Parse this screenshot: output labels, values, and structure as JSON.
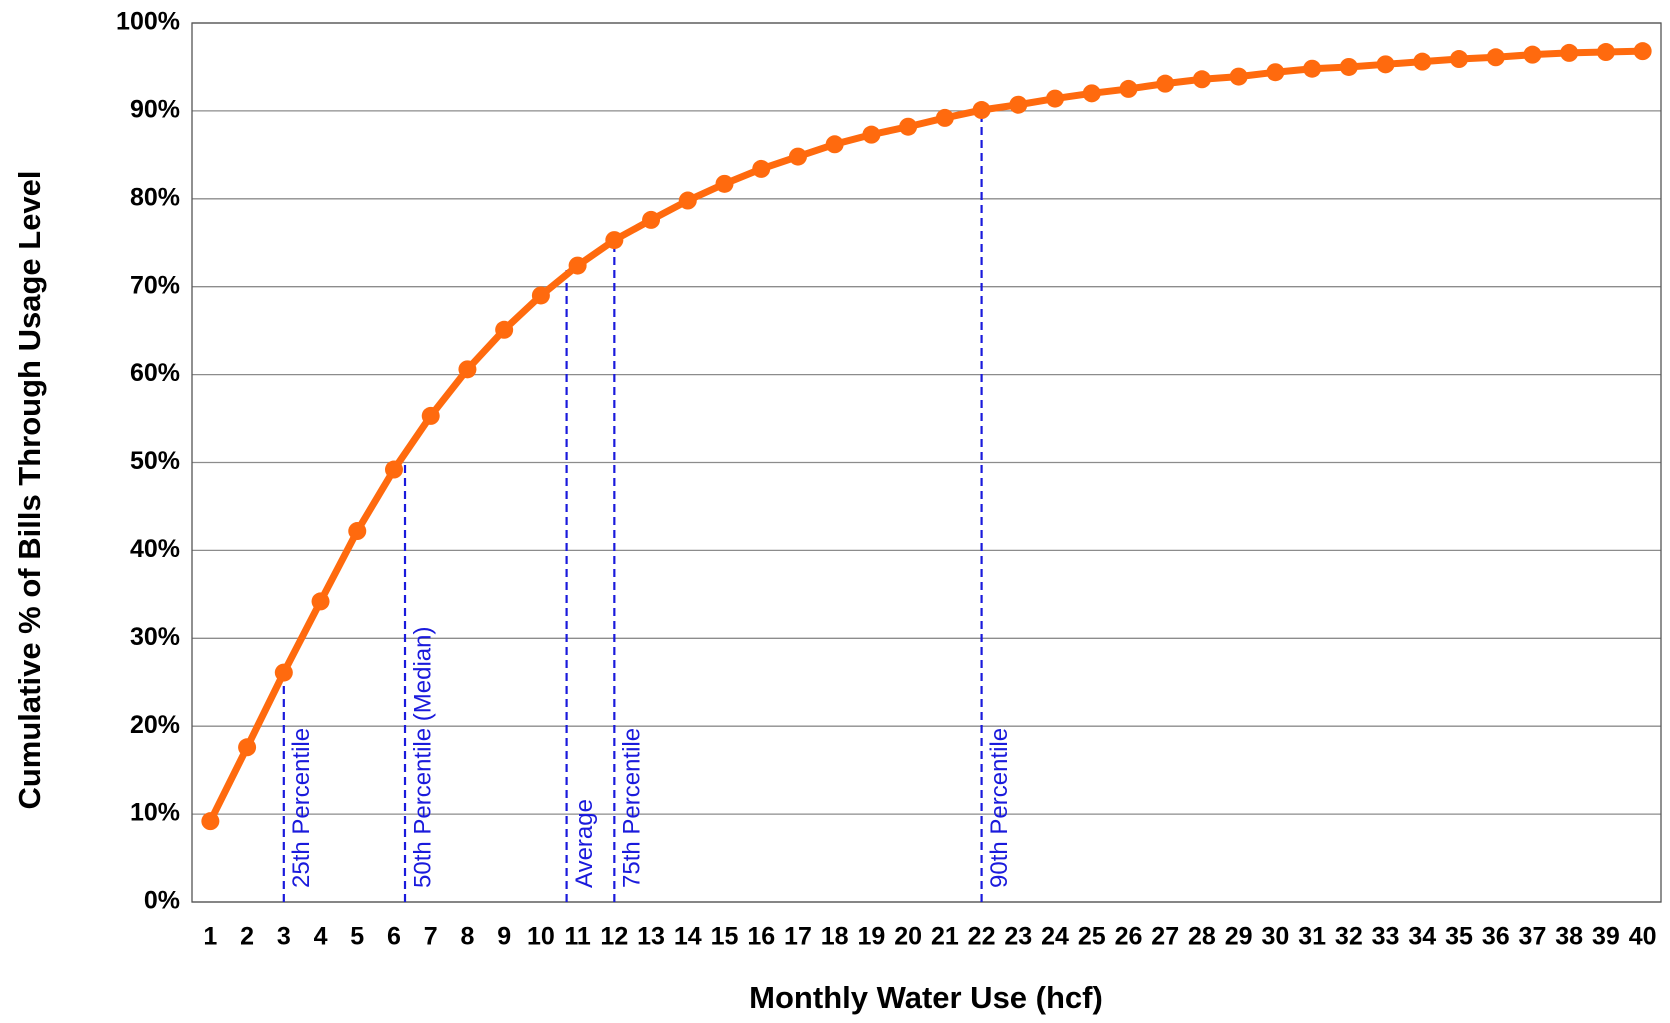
{
  "chart_data": {
    "type": "line",
    "x_label": "Monthly Water Use (hcf)",
    "y_label": "Cumulative % of Bills Through Usage Level",
    "categories": [
      "1",
      "2",
      "3",
      "4",
      "5",
      "6",
      "7",
      "8",
      "9",
      "10",
      "11",
      "12",
      "13",
      "14",
      "15",
      "16",
      "17",
      "18",
      "19",
      "20",
      "21",
      "22",
      "23",
      "24",
      "25",
      "26",
      "27",
      "28",
      "29",
      "30",
      "31",
      "32",
      "33",
      "34",
      "35",
      "36",
      "37",
      "38",
      "39",
      "40"
    ],
    "series": [
      {
        "name": "Cumulative % of Bills",
        "color": "#ff6a0e",
        "values": [
          9.2,
          17.6,
          26.1,
          34.2,
          42.2,
          49.2,
          55.3,
          60.6,
          65.1,
          69.0,
          72.4,
          75.3,
          77.6,
          79.8,
          81.7,
          83.4,
          84.8,
          86.2,
          87.3,
          88.2,
          89.2,
          90.1,
          90.7,
          91.4,
          92.0,
          92.5,
          93.1,
          93.6,
          93.9,
          94.4,
          94.8,
          95.0,
          95.3,
          95.6,
          95.9,
          96.1,
          96.4,
          96.6,
          96.7,
          96.8
        ]
      }
    ],
    "ylim": [
      0,
      100
    ],
    "yticks": [
      {
        "value": 0,
        "label": "0%"
      },
      {
        "value": 10,
        "label": "10%"
      },
      {
        "value": 20,
        "label": "20%"
      },
      {
        "value": 30,
        "label": "30%"
      },
      {
        "value": 40,
        "label": "40%"
      },
      {
        "value": 50,
        "label": "50%"
      },
      {
        "value": 60,
        "label": "60%"
      },
      {
        "value": 70,
        "label": "70%"
      },
      {
        "value": 80,
        "label": "80%"
      },
      {
        "value": 90,
        "label": "90%"
      },
      {
        "value": 100,
        "label": "100%"
      }
    ],
    "grid": true,
    "annotations": [
      {
        "text": "25th Percentile",
        "x": 3.0,
        "y": 26.1,
        "color": "#1a1adc"
      },
      {
        "text": "50th Percentile (Median)",
        "x": 6.3,
        "y": 50,
        "color": "#1a1adc"
      },
      {
        "text": "Average",
        "x": 10.7,
        "y": 72.4,
        "color": "#1a1adc"
      },
      {
        "text": "75th Percentile",
        "x": 12.0,
        "y": 75.3,
        "color": "#1a1adc"
      },
      {
        "text": "90th Percentile",
        "x": 22.0,
        "y": 90.1,
        "color": "#1a1adc"
      }
    ]
  }
}
